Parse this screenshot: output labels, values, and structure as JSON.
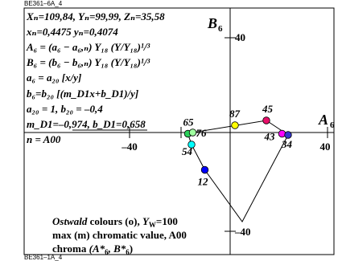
{
  "header_code": "BE361–6A_4",
  "footer_code": "BE361–1A_4",
  "formulas": {
    "line1": "Xₙ=109,84, Yₙ=99,99, Zₙ=35,58",
    "line2": "xₙ=0,4475 yₙ=0,4074",
    "line3": "A₆ = (a₆ − a₆,ₙ) Y₁₈ (Y/Y₁₈)¹/³",
    "line4": "B₆ = (b₆ − b₆,ₙ) Y₁₈ (Y/Y₁₈)¹/³",
    "line5": "a₆ = a₂₀ [x/y]",
    "line6": "b₆=b₂₀ [(m_D1x+b_D1)/y]",
    "line7": "a₂₀ = 1,  b₂₀ = –0,4",
    "line8": "m_D1=–0,974, b_D1=0,658",
    "line9": "n = A00"
  },
  "axes": {
    "a_label": "A",
    "a_sub": "6",
    "b_label": "B",
    "b_sub": "6",
    "ticks": {
      "x_neg": "–40",
      "x_pos": "40",
      "y_pos": "40",
      "y_neg": "–40"
    }
  },
  "legend": {
    "line1_a": "Ostwald",
    "line1_b": " colours (o), ",
    "line1_c": "Y",
    "line1_d": "W",
    "line1_e": "=100",
    "line2": "max (m) chromatic value, A00",
    "line3_a": "chroma ",
    "line3_b": "(A*",
    "line3_c": "6",
    "line3_d": ", B*",
    "line3_e": "6",
    "line3_f": ")"
  },
  "chart_data": {
    "type": "scatter",
    "xlim": [
      -62,
      62
    ],
    "ylim": [
      -62,
      50
    ],
    "points": [
      {
        "label": "87",
        "x": 2,
        "y": 3,
        "color": "#ffff00"
      },
      {
        "label": "45",
        "x": 15,
        "y": 5,
        "color": "#e8106a"
      },
      {
        "label": "43",
        "x": 21.5,
        "y": -0.5,
        "color": "#ff00ff"
      },
      {
        "label": "34",
        "x": 24,
        "y": -1,
        "color": "#3535cc"
      },
      {
        "label": "65",
        "x": -17.5,
        "y": -0.5,
        "color": "#2bd05a"
      },
      {
        "label": "76",
        "x": -15.5,
        "y": 0,
        "color": "#a0ffa0"
      },
      {
        "label": "54",
        "x": -16,
        "y": -5,
        "color": "#00ffff"
      },
      {
        "label": "12",
        "x": -10.5,
        "y": -15.5,
        "color": "#0000ff"
      }
    ],
    "polyline": [
      {
        "x": -15.5,
        "y": 0
      },
      {
        "x": 15,
        "y": 5
      },
      {
        "x": 24,
        "y": -1
      },
      {
        "x": 5,
        "y": -37
      },
      {
        "x": -10.5,
        "y": -15.5
      },
      {
        "x": -16,
        "y": -5
      },
      {
        "x": -17.5,
        "y": -0.5
      }
    ]
  }
}
